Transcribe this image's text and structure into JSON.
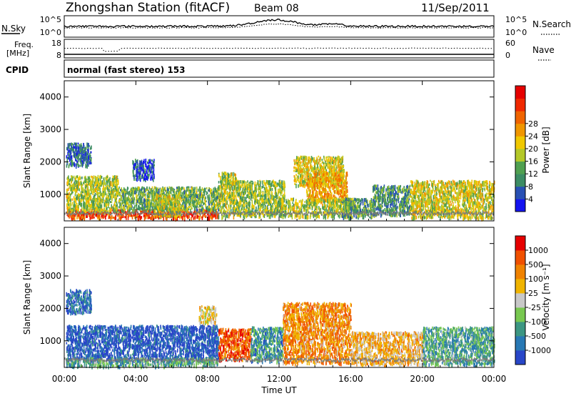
{
  "header": {
    "title": "Zhongshan Station (fitACF)",
    "beam": "Beam 08",
    "date": "11/Sep/2011",
    "cpid_label": "CPID",
    "cpid_value": "normal (fast stereo) 153"
  },
  "nsky_panel": {
    "left_label": "N.Sky",
    "left_ticks": [
      "10^5",
      "10^0"
    ],
    "right_label": "N.Search",
    "right_ticks": [
      "10^5",
      "10^0"
    ]
  },
  "freq_panel": {
    "left_label_line1": "Freq.",
    "left_label_line2": "[MHz]",
    "left_ticks": [
      "18",
      "8"
    ],
    "left_range": [
      8,
      18
    ],
    "right_label": "Nave",
    "right_ticks": [
      "60",
      "0"
    ],
    "right_range": [
      0,
      60
    ]
  },
  "x_axis": {
    "label": "Time UT",
    "tick_labels": [
      "00:00",
      "04:00",
      "08:00",
      "12:00",
      "16:00",
      "20:00",
      "00:00"
    ],
    "range_hours": [
      0,
      24
    ]
  },
  "power_panel": {
    "ylabel": "Slant Range [km]",
    "yticks": [
      "1000",
      "2000",
      "3000",
      "4000"
    ],
    "colorbar_label": "Power [dB]",
    "colorbar_ticks": [
      "4",
      "8",
      "12",
      "16",
      "20",
      "24",
      "28"
    ],
    "colorbar_colors": [
      "#1414f0",
      "#2850b4",
      "#3c8c64",
      "#50a050",
      "#b4c828",
      "#f0c800",
      "#f09600",
      "#f06400",
      "#f02800",
      "#e60000"
    ]
  },
  "velocity_panel": {
    "ylabel": "Slant Range [km]",
    "yticks": [
      "1000",
      "2000",
      "3000",
      "4000"
    ],
    "colorbar_label": "Velocity [m s⁻¹]",
    "colorbar_ticks": [
      "1000",
      "500",
      "100",
      "25",
      "-25",
      "-100",
      "-500",
      "-1000"
    ],
    "colorbar_colors": [
      "#2846c8",
      "#2878b4",
      "#3c9682",
      "#78c850",
      "#c8c8c8",
      "#f0b400",
      "#f08200",
      "#f05000",
      "#e60000"
    ]
  },
  "chart_data": {
    "type": "heatmap",
    "x_unit": "hours UT",
    "y_unit": "km",
    "ylim": [
      180,
      4500
    ],
    "power_blobs": [
      {
        "t0": 0.1,
        "t1": 8.6,
        "r0": 300,
        "r1": 560,
        "level": 0.82
      },
      {
        "t0": 0.1,
        "t1": 3.0,
        "r0": 500,
        "r1": 1600,
        "level": 0.45
      },
      {
        "t0": 3.0,
        "t1": 8.6,
        "r0": 540,
        "r1": 1250,
        "level": 0.35
      },
      {
        "t0": 5.0,
        "t1": 6.5,
        "r0": 350,
        "r1": 1000,
        "level": 0.48
      },
      {
        "t0": 8.6,
        "t1": 9.6,
        "r0": 350,
        "r1": 1700,
        "level": 0.45
      },
      {
        "t0": 9.6,
        "t1": 12.3,
        "r0": 350,
        "r1": 1450,
        "level": 0.42
      },
      {
        "t0": 12.8,
        "t1": 15.6,
        "r0": 1300,
        "r1": 2200,
        "level": 0.52
      },
      {
        "t0": 13.5,
        "t1": 15.8,
        "r0": 800,
        "r1": 1700,
        "level": 0.62
      },
      {
        "t0": 12.0,
        "t1": 16.2,
        "r0": 350,
        "r1": 900,
        "level": 0.45
      },
      {
        "t0": 15.5,
        "t1": 17.2,
        "r0": 300,
        "r1": 900,
        "level": 0.32
      },
      {
        "t0": 17.2,
        "t1": 19.3,
        "r0": 400,
        "r1": 1300,
        "level": 0.28
      },
      {
        "t0": 19.3,
        "t1": 24.0,
        "r0": 300,
        "r1": 1450,
        "level": 0.5
      },
      {
        "t0": 3.8,
        "t1": 5.0,
        "r0": 1500,
        "r1": 2100,
        "level": 0.15
      },
      {
        "t0": 0.1,
        "t1": 1.5,
        "r0": 1900,
        "r1": 2600,
        "level": 0.18
      }
    ],
    "velocity_blobs": [
      {
        "t0": 0.1,
        "t1": 8.6,
        "r0": 400,
        "r1": 1500,
        "level": 0.08
      },
      {
        "t0": 0.1,
        "t1": 8.6,
        "r0": 250,
        "r1": 500,
        "level": 0.32
      },
      {
        "t0": 8.6,
        "t1": 10.4,
        "r0": 450,
        "r1": 1400,
        "level": 0.82
      },
      {
        "t0": 10.4,
        "t1": 12.2,
        "r0": 400,
        "r1": 1450,
        "level": 0.25
      },
      {
        "t0": 12.2,
        "t1": 16.0,
        "r0": 350,
        "r1": 2200,
        "level": 0.7
      },
      {
        "t0": 16.0,
        "t1": 20.0,
        "r0": 300,
        "r1": 1300,
        "level": 0.62
      },
      {
        "t0": 20.0,
        "t1": 24.0,
        "r0": 300,
        "r1": 1450,
        "level": 0.3
      },
      {
        "t0": 7.5,
        "t1": 8.5,
        "r0": 1600,
        "r1": 2100,
        "level": 0.55
      },
      {
        "t0": 0.1,
        "t1": 1.5,
        "r0": 1900,
        "r1": 2600,
        "level": 0.15
      }
    ]
  }
}
